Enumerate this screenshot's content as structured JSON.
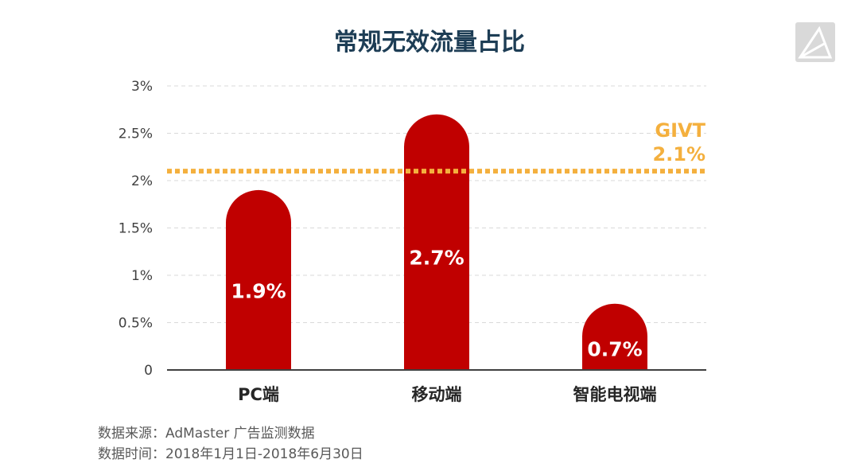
{
  "title": "常规无效流量占比",
  "logo": {
    "icon": "a-logo-icon"
  },
  "chart_data": {
    "type": "bar",
    "categories": [
      "PC端",
      "移动端",
      "智能电视端"
    ],
    "values": [
      1.9,
      2.7,
      0.7
    ],
    "data_labels": [
      "1.9%",
      "2.7%",
      "0.7%"
    ],
    "ylim": [
      0,
      3
    ],
    "yticks": [
      0,
      0.5,
      1,
      1.5,
      2,
      2.5,
      3
    ],
    "ytick_labels": [
      "0",
      "0.5%",
      "1%",
      "1.5%",
      "2%",
      "2.5%",
      "3%"
    ],
    "grid": true,
    "bar_color": "#c00000",
    "reference_line": {
      "value": 2.1,
      "name": "GIVT",
      "label": "2.1%",
      "color": "#f4b03e",
      "style": "dotted"
    },
    "xlabel": "",
    "ylabel": ""
  },
  "source": {
    "line1": "数据来源：AdMaster 广告监测数据",
    "line2": "数据时间：2018年1月1日-2018年6月30日"
  }
}
